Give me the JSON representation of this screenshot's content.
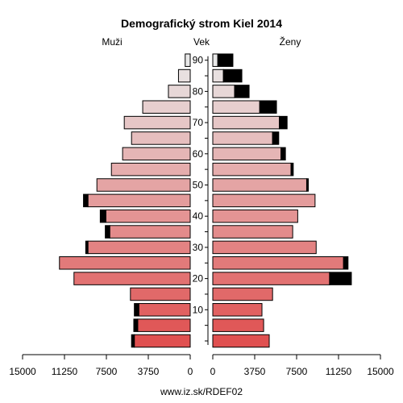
{
  "chart_data": {
    "type": "bar",
    "title": "Demografický strom Kiel 2014",
    "left_label": "Muži",
    "center_label": "Vek",
    "right_label": "Ženy",
    "footer": "www.iz.sk/RDEF02",
    "age_ticks": [
      "10",
      "20",
      "30",
      "40",
      "50",
      "60",
      "70",
      "80",
      "90"
    ],
    "x_ticks_left": [
      "15000",
      "11250",
      "7500",
      "3750",
      "0"
    ],
    "x_ticks_right": [
      "0",
      "3750",
      "7500",
      "11250",
      "15000"
    ],
    "xlim": [
      0,
      15000
    ],
    "groups": [
      "0-4",
      "5-9",
      "10-14",
      "15-19",
      "20-24",
      "25-29",
      "30-34",
      "35-39",
      "40-44",
      "45-49",
      "50-54",
      "55-59",
      "60-64",
      "65-69",
      "70-74",
      "75-79",
      "80-84",
      "85-89",
      "90+"
    ],
    "series": [
      {
        "name": "Muži",
        "side": "left",
        "values": [
          5000,
          4700,
          4600,
          5350,
          10400,
          11700,
          9150,
          7200,
          7550,
          9150,
          8350,
          7050,
          6050,
          5250,
          5900,
          4250,
          1950,
          1050,
          450
        ],
        "excess": [
          250,
          350,
          400,
          0,
          0,
          0,
          200,
          400,
          500,
          400,
          0,
          0,
          0,
          0,
          0,
          0,
          0,
          0,
          0
        ]
      },
      {
        "name": "Ženy",
        "side": "right",
        "values": [
          5050,
          4550,
          4400,
          5350,
          10450,
          11700,
          9250,
          7150,
          7600,
          9150,
          8400,
          7000,
          6100,
          5350,
          5950,
          4200,
          1950,
          950,
          450
        ],
        "excess": [
          0,
          0,
          0,
          0,
          1950,
          400,
          0,
          0,
          0,
          0,
          150,
          200,
          400,
          550,
          700,
          1500,
          1300,
          1650,
          1350
        ]
      }
    ],
    "colors": {
      "bottom": "#e05050",
      "top": "#e8e8e8",
      "excess": "#000000"
    },
    "grid": false
  }
}
